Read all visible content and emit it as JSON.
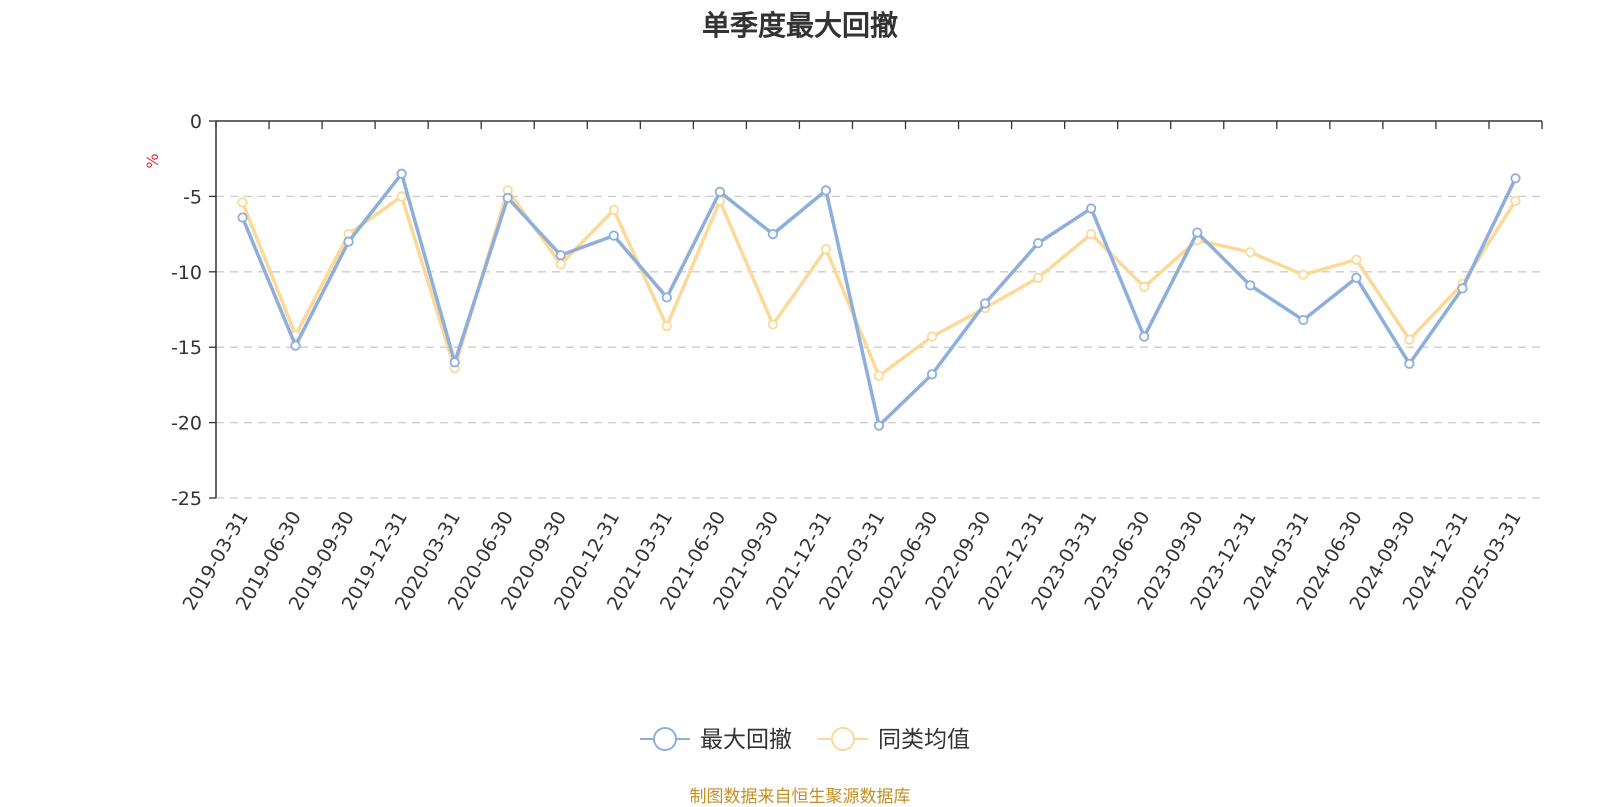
{
  "chart_data": {
    "type": "line",
    "title": "单季度最大回撤",
    "ylabel": "%",
    "ylim": [
      -25,
      0
    ],
    "yticks": [
      0,
      -5,
      -10,
      -15,
      -20,
      -25
    ],
    "grid": true,
    "legend_position": "bottom-center",
    "categories": [
      "2019-03-31",
      "2019-06-30",
      "2019-09-30",
      "2019-12-31",
      "2020-03-31",
      "2020-06-30",
      "2020-09-30",
      "2020-12-31",
      "2021-03-31",
      "2021-06-30",
      "2021-09-30",
      "2021-12-31",
      "2022-03-31",
      "2022-06-30",
      "2022-09-30",
      "2022-12-31",
      "2023-03-31",
      "2023-06-30",
      "2023-09-30",
      "2023-12-31",
      "2024-03-31",
      "2024-06-30",
      "2024-09-30",
      "2024-12-31",
      "2025-03-31"
    ],
    "series": [
      {
        "name": "最大回撤",
        "color": "#8eaedb",
        "values": [
          -6.4,
          -14.9,
          -8.0,
          -3.5,
          -16.0,
          -5.1,
          -8.9,
          -7.6,
          -11.7,
          -4.7,
          -7.5,
          -4.6,
          -20.2,
          -16.8,
          -12.1,
          -8.1,
          -5.8,
          -14.3,
          -7.4,
          -10.9,
          -13.2,
          -10.4,
          -16.1,
          -11.1,
          -3.8
        ]
      },
      {
        "name": "同类均值",
        "color": "#fcd998",
        "values": [
          -5.4,
          -14.2,
          -7.5,
          -5.0,
          -16.4,
          -4.6,
          -9.5,
          -5.9,
          -13.6,
          -5.3,
          -13.5,
          -8.5,
          -16.9,
          -14.3,
          -12.4,
          -10.4,
          -7.5,
          -11.0,
          -7.9,
          -8.7,
          -10.2,
          -9.2,
          -14.5,
          -10.8,
          -5.3
        ]
      }
    ]
  },
  "footer": {
    "source": "制图数据来自恒生聚源数据库"
  }
}
